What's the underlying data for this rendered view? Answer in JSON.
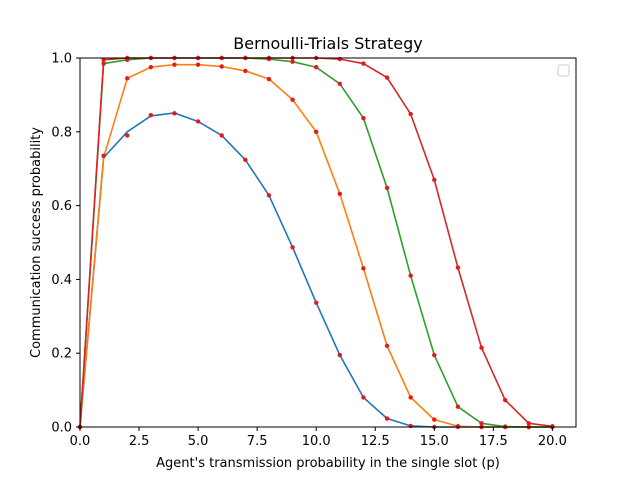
{
  "chart_data": {
    "type": "line",
    "title": "Bernoulli-Trials Strategy",
    "xlabel": "Agent's transmission probability in the single slot (p)",
    "ylabel": "Communication success probability",
    "xlim": [
      0,
      21
    ],
    "ylim": [
      0,
      1
    ],
    "xticks": [
      "0.0",
      "2.5",
      "5.0",
      "7.5",
      "10.0",
      "12.5",
      "15.0",
      "17.5",
      "20.0"
    ],
    "yticks": [
      "0.0",
      "0.2",
      "0.4",
      "0.6",
      "0.8",
      "1.0"
    ],
    "grid": false,
    "legend": "top-right",
    "marker_color": "#e41a1c",
    "x": [
      0,
      1,
      2,
      3,
      4,
      5,
      6,
      7,
      8,
      9,
      10,
      11,
      12,
      13,
      14,
      15,
      16,
      17,
      18,
      19,
      20
    ],
    "series": [
      {
        "color": "#1f77b4",
        "line_values": [
          0,
          0.73,
          0.8,
          0.843,
          0.851,
          0.828,
          0.79,
          0.724,
          0.628,
          0.487,
          0.337,
          0.195,
          0.08,
          0.023,
          0.003,
          0.0,
          0.0,
          0.0,
          0.0,
          0.0,
          0.0
        ],
        "marker_values": [
          0,
          0.735,
          0.79,
          0.845,
          0.85,
          0.828,
          0.79,
          0.724,
          0.628,
          0.487,
          0.337,
          0.195,
          0.08,
          0.023,
          0.003,
          0.0,
          0.0,
          0.0,
          0.0,
          0.0,
          0.0
        ]
      },
      {
        "color": "#ff7f0e",
        "line_values": [
          0,
          0.73,
          0.945,
          0.975,
          0.982,
          0.982,
          0.977,
          0.965,
          0.943,
          0.887,
          0.8,
          0.632,
          0.43,
          0.22,
          0.08,
          0.02,
          0.002,
          0.0,
          0.0,
          0.0,
          0.0
        ],
        "marker_values": [
          0,
          0.735,
          0.945,
          0.975,
          0.982,
          0.982,
          0.977,
          0.965,
          0.943,
          0.887,
          0.8,
          0.632,
          0.43,
          0.22,
          0.08,
          0.02,
          0.002,
          0.0,
          0.0,
          0.0,
          0.0
        ]
      },
      {
        "color": "#2ca02c",
        "line_values": [
          0,
          0.985,
          0.995,
          1.0,
          1.0,
          1.0,
          1.0,
          1.0,
          0.997,
          0.99,
          0.975,
          0.93,
          0.837,
          0.648,
          0.41,
          0.195,
          0.055,
          0.01,
          0.001,
          0.0,
          0.0
        ],
        "marker_values": [
          0,
          0.985,
          0.995,
          1.0,
          1.0,
          1.0,
          1.0,
          1.0,
          0.997,
          0.99,
          0.975,
          0.93,
          0.837,
          0.648,
          0.41,
          0.195,
          0.055,
          0.01,
          0.001,
          0.0,
          0.0
        ]
      },
      {
        "color": "#d62728",
        "line_values": [
          0,
          0.995,
          1.0,
          1.0,
          1.0,
          1.0,
          1.0,
          1.0,
          1.0,
          1.0,
          1.0,
          0.997,
          0.985,
          0.947,
          0.848,
          0.67,
          0.432,
          0.215,
          0.073,
          0.01,
          0.002
        ],
        "marker_values": [
          0,
          0.995,
          1.0,
          1.0,
          1.0,
          1.0,
          1.0,
          1.0,
          1.0,
          1.0,
          1.0,
          0.997,
          0.985,
          0.947,
          0.848,
          0.67,
          0.432,
          0.215,
          0.073,
          0.01,
          0.002
        ]
      }
    ]
  }
}
